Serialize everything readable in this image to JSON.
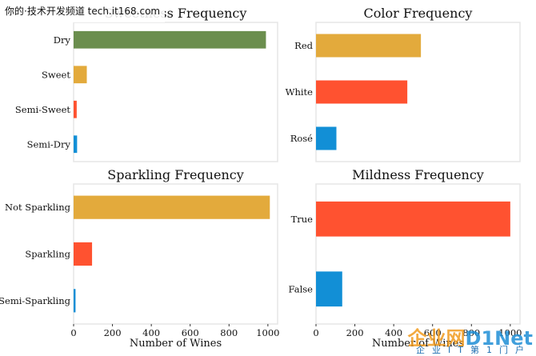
{
  "watermark": {
    "top_text": "你的·技术开发频道  tech.it168.com",
    "logo_cn": "企业网",
    "logo_en": "D1Net",
    "tagline": "企业IT第1门户"
  },
  "colors": {
    "olive": "#6b8e4e",
    "gold": "#e3aa3c",
    "orange": "#ff5230",
    "blue": "#128fd6",
    "frame": "#e6e6e6",
    "text": "#111111"
  },
  "chart_data": [
    {
      "type": "bar",
      "orientation": "horizontal",
      "title": "Sweetness Frequency",
      "categories": [
        "Dry",
        "Sweet",
        "Semi-Sweet",
        "Semi-Dry"
      ],
      "values": [
        990,
        68,
        16,
        18
      ],
      "bar_colors": [
        "olive",
        "gold",
        "orange",
        "blue"
      ],
      "xlim": [
        0,
        1050
      ],
      "xticks": [],
      "xlabel": "",
      "grid": false
    },
    {
      "type": "bar",
      "orientation": "horizontal",
      "title": "Color Frequency",
      "categories": [
        "Red",
        "White",
        "Rosé"
      ],
      "values": [
        540,
        470,
        105
      ],
      "bar_colors": [
        "gold",
        "orange",
        "blue"
      ],
      "xlim": [
        0,
        1050
      ],
      "xticks": [],
      "xlabel": "",
      "grid": false
    },
    {
      "type": "bar",
      "orientation": "horizontal",
      "title": "Sparkling Frequency",
      "categories": [
        "Not Sparkling",
        "Sparkling",
        "Semi-Sparkling"
      ],
      "values": [
        1010,
        95,
        10
      ],
      "bar_colors": [
        "gold",
        "orange",
        "blue"
      ],
      "xlim": [
        0,
        1050
      ],
      "xticks": [
        0,
        200,
        400,
        600,
        800,
        1000
      ],
      "xlabel": "Number of Wines",
      "grid": false
    },
    {
      "type": "bar",
      "orientation": "horizontal",
      "title": "Mildness Frequency",
      "categories": [
        "True",
        "False"
      ],
      "values": [
        1000,
        135
      ],
      "bar_colors": [
        "orange",
        "blue"
      ],
      "xlim": [
        0,
        1050
      ],
      "xticks": [
        0,
        200,
        400,
        600,
        800,
        1000
      ],
      "xlabel": "Number of Wines",
      "grid": false
    }
  ]
}
